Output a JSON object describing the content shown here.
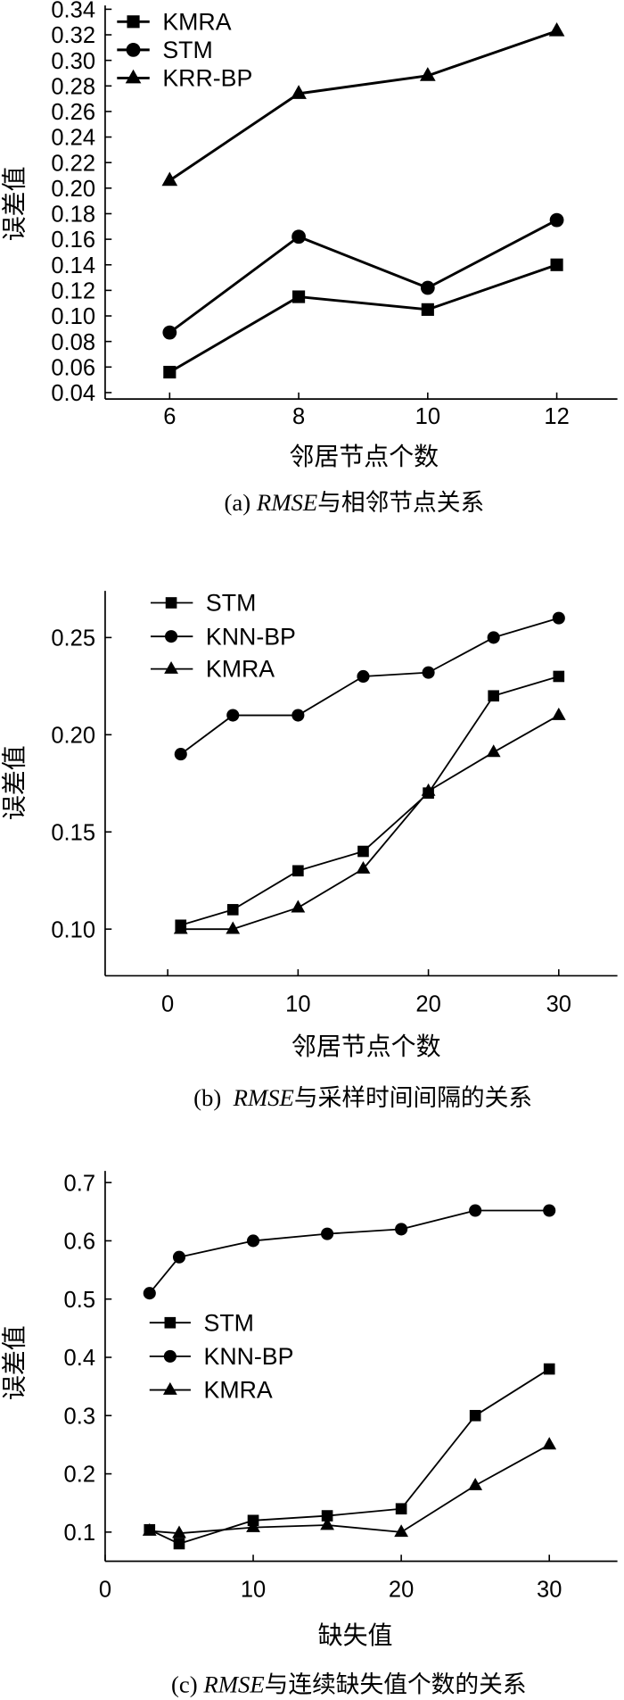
{
  "colors": {
    "ink": "#000000",
    "background": "#ffffff"
  },
  "chart_data": [
    {
      "type": "line",
      "caption": {
        "prefix": "(a) ",
        "em": "RMSE",
        "rest": "与相邻节点关系"
      },
      "xlabel": "邻居节点个数",
      "ylabel": "误差值",
      "xlim": [
        5,
        12.94
      ],
      "ylim": [
        0.035,
        0.343
      ],
      "xticks": [
        "6",
        "8",
        "10",
        "12"
      ],
      "yticks": [
        "0.04",
        "0.06",
        "0.08",
        "0.10",
        "0.12",
        "0.14",
        "0.16",
        "0.18",
        "0.20",
        "0.22",
        "0.24",
        "0.26",
        "0.28",
        "0.30",
        "0.32",
        "0.34"
      ],
      "grid": false,
      "legend": "top-left",
      "series": [
        {
          "name": "KMRA",
          "marker": "square",
          "x": [
            6,
            8,
            10,
            12
          ],
          "values": [
            0.056,
            0.115,
            0.105,
            0.14
          ]
        },
        {
          "name": "STM",
          "marker": "circle",
          "x": [
            6,
            8,
            10,
            12
          ],
          "values": [
            0.087,
            0.162,
            0.122,
            0.175
          ]
        },
        {
          "name": "KRR-BP",
          "marker": "triangle",
          "x": [
            6,
            8,
            10,
            12
          ],
          "values": [
            0.206,
            0.274,
            0.288,
            0.323
          ]
        }
      ]
    },
    {
      "type": "line",
      "caption": {
        "prefix": "(b)  ",
        "em": "RMSE",
        "rest": "与采样时间间隔的关系"
      },
      "xlabel": "邻居节点个数",
      "ylabel": "误差值",
      "xlim": [
        -4.8,
        34.5
      ],
      "ylim": [
        0.076,
        0.274
      ],
      "xticks": [
        "0",
        "10",
        "20",
        "30"
      ],
      "yticks": [
        "0.10",
        "0.15",
        "0.20",
        "0.25"
      ],
      "grid": false,
      "legend": "top-left",
      "series": [
        {
          "name": "STM",
          "marker": "square",
          "x": [
            1,
            5,
            10,
            15,
            20,
            25,
            30
          ],
          "values": [
            0.102,
            0.11,
            0.13,
            0.14,
            0.17,
            0.22,
            0.23
          ]
        },
        {
          "name": "KNN-BP",
          "marker": "circle",
          "x": [
            1,
            5,
            10,
            15,
            20,
            25,
            30
          ],
          "values": [
            0.19,
            0.21,
            0.21,
            0.23,
            0.232,
            0.25,
            0.26
          ]
        },
        {
          "name": "KMRA",
          "marker": "triangle",
          "x": [
            1,
            5,
            10,
            15,
            20,
            25,
            30
          ],
          "values": [
            0.1,
            0.1,
            0.111,
            0.131,
            0.171,
            0.191,
            0.21
          ]
        }
      ]
    },
    {
      "type": "line",
      "caption": {
        "prefix": "(c) ",
        "em": "RMSE",
        "rest": "与连续缺失值个数的关系"
      },
      "xlabel": "缺失值",
      "ylabel": "误差值",
      "xlim": [
        0,
        34.6
      ],
      "ylim": [
        0.05,
        0.72
      ],
      "xticks": [
        "0",
        "10",
        "20",
        "30"
      ],
      "yticks": [
        "0.1",
        "0.2",
        "0.3",
        "0.4",
        "0.5",
        "0.6",
        "0.7"
      ],
      "grid": false,
      "legend": "middle-left",
      "series": [
        {
          "name": "STM",
          "marker": "square",
          "x": [
            3,
            5,
            10,
            15,
            20,
            25,
            30
          ],
          "values": [
            0.104,
            0.08,
            0.12,
            0.128,
            0.14,
            0.3,
            0.38
          ]
        },
        {
          "name": "KNN-BP",
          "marker": "circle",
          "x": [
            3,
            5,
            10,
            15,
            20,
            25,
            30
          ],
          "values": [
            0.51,
            0.572,
            0.6,
            0.612,
            0.62,
            0.652,
            0.652
          ]
        },
        {
          "name": "KMRA",
          "marker": "triangle",
          "x": [
            3,
            5,
            10,
            15,
            20,
            25,
            30
          ],
          "values": [
            0.102,
            0.098,
            0.108,
            0.112,
            0.1,
            0.18,
            0.25
          ]
        }
      ]
    }
  ]
}
